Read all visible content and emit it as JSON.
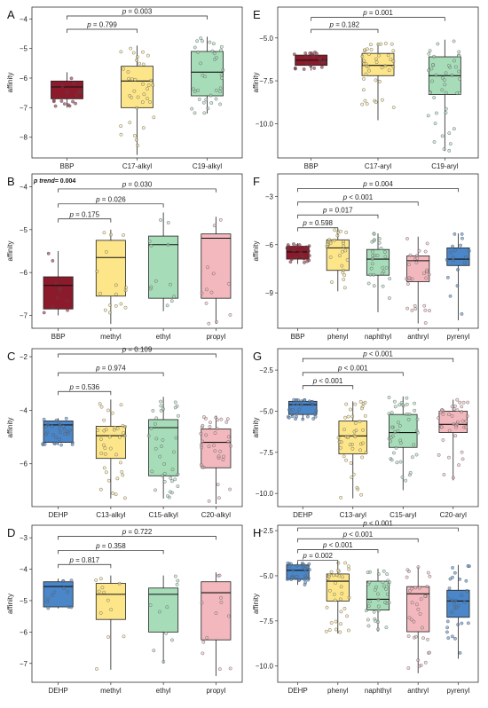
{
  "colors": {
    "red": "#8b1a2b",
    "yellow": "#fde68a",
    "green": "#a7dcb9",
    "pink": "#f2b8bd",
    "blue": "#4a86c8"
  },
  "chart_data": [
    {
      "type": "boxplot",
      "panel": "A",
      "ylabel": "affinity",
      "ylim": [
        -8.7,
        -3.6
      ],
      "yticks": [
        -8,
        -7,
        -6,
        -5,
        -4
      ],
      "categories": [
        "BBP",
        "C17-alkyl",
        "C19-alkyl"
      ],
      "boxes": [
        {
          "min": -7.0,
          "q1": -6.7,
          "median": -6.3,
          "q3": -6.1,
          "max": -5.8,
          "color": "red"
        },
        {
          "min": -8.6,
          "q1": -7.0,
          "median": -6.1,
          "q3": -5.6,
          "max": -4.9,
          "color": "yellow"
        },
        {
          "min": -7.2,
          "q1": -6.6,
          "median": -5.8,
          "q3": -5.1,
          "max": -4.6,
          "color": "green"
        }
      ],
      "npoints": [
        16,
        36,
        36
      ],
      "comparisons": [
        {
          "from": 0,
          "to": 1,
          "label": "p = 0.799",
          "y": -4.35
        },
        {
          "from": 0,
          "to": 2,
          "label": "p = 0.003",
          "y": -3.9
        }
      ]
    },
    {
      "type": "boxplot",
      "panel": "B",
      "ylabel": "affinity",
      "note": "p trend= 0.004",
      "ylim": [
        -7.3,
        -3.7
      ],
      "yticks": [
        -7,
        -6,
        -5,
        -4
      ],
      "categories": [
        "BBP",
        "methyl",
        "ethyl",
        "propyl"
      ],
      "boxes": [
        {
          "min": -7.0,
          "q1": -6.85,
          "median": -6.3,
          "q3": -6.1,
          "max": -5.5,
          "color": "red"
        },
        {
          "min": -7.2,
          "q1": -6.55,
          "median": -5.65,
          "q3": -5.25,
          "max": -5.0,
          "color": "yellow"
        },
        {
          "min": -6.9,
          "q1": -6.6,
          "median": -5.35,
          "q3": -5.15,
          "max": -4.6,
          "color": "green"
        },
        {
          "min": -7.2,
          "q1": -6.6,
          "median": -5.2,
          "q3": -5.1,
          "max": -4.7,
          "color": "pink"
        }
      ],
      "npoints": [
        10,
        16,
        12,
        12
      ],
      "comparisons": [
        {
          "from": 0,
          "to": 1,
          "label": "p = 0.175",
          "y": -4.75
        },
        {
          "from": 0,
          "to": 2,
          "label": "p = 0.026",
          "y": -4.4
        },
        {
          "from": 0,
          "to": 3,
          "label": "p = 0.030",
          "y": -4.05
        }
      ]
    },
    {
      "type": "boxplot",
      "panel": "C",
      "ylabel": "affinity",
      "ylim": [
        -7.6,
        -1.7
      ],
      "yticks": [
        -6,
        -4,
        -2
      ],
      "categories": [
        "DEHP",
        "C13-alkyl",
        "C15-alkyl",
        "C20-alkyl"
      ],
      "boxes": [
        {
          "min": -5.3,
          "q1": -5.2,
          "median": -4.55,
          "q3": -4.4,
          "max": -4.3,
          "color": "blue"
        },
        {
          "min": -7.3,
          "q1": -5.8,
          "median": -4.95,
          "q3": -4.6,
          "max": -3.6,
          "color": "yellow"
        },
        {
          "min": -7.3,
          "q1": -6.45,
          "median": -4.65,
          "q3": -4.35,
          "max": -3.5,
          "color": "green"
        },
        {
          "min": -7.5,
          "q1": -6.15,
          "median": -5.2,
          "q3": -4.7,
          "max": -4.2,
          "color": "pink"
        }
      ],
      "npoints": [
        30,
        36,
        36,
        36
      ],
      "comparisons": [
        {
          "from": 0,
          "to": 1,
          "label": "p = 0.536",
          "y": -3.3
        },
        {
          "from": 0,
          "to": 2,
          "label": "p = 0.974",
          "y": -2.6
        },
        {
          "from": 0,
          "to": 3,
          "label": "p = 0.109",
          "y": -1.9
        }
      ]
    },
    {
      "type": "boxplot",
      "panel": "D",
      "ylabel": "affinity",
      "ylim": [
        -7.6,
        -2.6
      ],
      "yticks": [
        -7,
        -6,
        -5,
        -4,
        -3
      ],
      "categories": [
        "DEHP",
        "methyl",
        "ethyl",
        "propyl"
      ],
      "boxes": [
        {
          "min": -5.25,
          "q1": -5.2,
          "median": -4.55,
          "q3": -4.4,
          "max": -4.3,
          "color": "blue"
        },
        {
          "min": -7.2,
          "q1": -5.6,
          "median": -4.8,
          "q3": -4.45,
          "max": -4.2,
          "color": "yellow"
        },
        {
          "min": -7.0,
          "q1": -6.0,
          "median": -4.8,
          "q3": -4.6,
          "max": -4.2,
          "color": "green"
        },
        {
          "min": -7.4,
          "q1": -6.25,
          "median": -4.75,
          "q3": -4.4,
          "max": -4.1,
          "color": "pink"
        }
      ],
      "npoints": [
        12,
        12,
        10,
        12
      ],
      "comparisons": [
        {
          "from": 0,
          "to": 1,
          "label": "p = 0.817",
          "y": -3.85
        },
        {
          "from": 0,
          "to": 2,
          "label": "p = 0.358",
          "y": -3.4
        },
        {
          "from": 0,
          "to": 3,
          "label": "p = 0.722",
          "y": -2.95
        }
      ]
    },
    {
      "type": "boxplot",
      "panel": "E",
      "ylabel": "affinity",
      "ylim": [
        -12.0,
        -3.2
      ],
      "yticks": [
        -10.0,
        -7.5,
        -5.0
      ],
      "categories": [
        "BBP",
        "C17-aryl",
        "C19-aryl"
      ],
      "boxes": [
        {
          "min": -6.9,
          "q1": -6.6,
          "median": -6.3,
          "q3": -6.0,
          "max": -5.8,
          "color": "red"
        },
        {
          "min": -9.8,
          "q1": -7.2,
          "median": -6.6,
          "q3": -5.9,
          "max": -5.3,
          "color": "yellow"
        },
        {
          "min": -11.6,
          "q1": -8.3,
          "median": -7.2,
          "q3": -6.1,
          "max": -5.1,
          "color": "green"
        }
      ],
      "npoints": [
        20,
        40,
        44
      ],
      "comparisons": [
        {
          "from": 0,
          "to": 1,
          "label": "p = 0.182",
          "y": -4.5
        },
        {
          "from": 0,
          "to": 2,
          "label": "p = 0.001",
          "y": -3.8
        }
      ]
    },
    {
      "type": "boxplot",
      "panel": "F",
      "ylabel": "affinity",
      "ylim": [
        -11.2,
        -1.6
      ],
      "yticks": [
        -9,
        -6,
        -3
      ],
      "categories": [
        "BBP",
        "phenyl",
        "naphthyl",
        "anthryl",
        "pyrenyl"
      ],
      "boxes": [
        {
          "min": -7.2,
          "q1": -6.9,
          "median": -6.45,
          "q3": -6.1,
          "max": -5.9,
          "color": "red"
        },
        {
          "min": -8.9,
          "q1": -7.6,
          "median": -6.2,
          "q3": -5.7,
          "max": -5.0,
          "color": "yellow"
        },
        {
          "min": -10.2,
          "q1": -7.9,
          "median": -6.9,
          "q3": -6.3,
          "max": -5.3,
          "color": "green"
        },
        {
          "min": -10.9,
          "q1": -8.3,
          "median": -7.0,
          "q3": -6.7,
          "max": -5.5,
          "color": "pink"
        },
        {
          "min": -10.7,
          "q1": -7.3,
          "median": -6.9,
          "q3": -6.2,
          "max": -5.3,
          "color": "blue"
        }
      ],
      "npoints": [
        20,
        28,
        28,
        28,
        18
      ],
      "comparisons": [
        {
          "from": 0,
          "to": 1,
          "label": "p = 0.598",
          "y": -4.95
        },
        {
          "from": 0,
          "to": 2,
          "label": "p = 0.017",
          "y": -4.15
        },
        {
          "from": 0,
          "to": 3,
          "label": "p < 0.001",
          "y": -3.35
        },
        {
          "from": 0,
          "to": 4,
          "label": "p = 0.004",
          "y": -2.5
        }
      ]
    },
    {
      "type": "boxplot",
      "panel": "G",
      "ylabel": "affinity",
      "ylim": [
        -10.8,
        -1.2
      ],
      "yticks": [
        -10.0,
        -7.5,
        -5.0,
        -2.5
      ],
      "categories": [
        "DEHP",
        "C13-aryl",
        "C15-aryl",
        "C20-aryl"
      ],
      "boxes": [
        {
          "min": -5.5,
          "q1": -5.2,
          "median": -4.6,
          "q3": -4.4,
          "max": -4.3,
          "color": "blue"
        },
        {
          "min": -10.3,
          "q1": -7.6,
          "median": -6.5,
          "q3": -5.6,
          "max": -4.4,
          "color": "yellow"
        },
        {
          "min": -9.8,
          "q1": -7.2,
          "median": -6.3,
          "q3": -5.2,
          "max": -4.1,
          "color": "green"
        },
        {
          "min": -9.2,
          "q1": -6.3,
          "median": -5.8,
          "q3": -5.0,
          "max": -4.3,
          "color": "pink"
        }
      ],
      "npoints": [
        30,
        44,
        44,
        40
      ],
      "comparisons": [
        {
          "from": 0,
          "to": 1,
          "label": "p < 0.001",
          "y": -3.45
        },
        {
          "from": 0,
          "to": 2,
          "label": "p < 0.001",
          "y": -2.65
        },
        {
          "from": 0,
          "to": 3,
          "label": "p < 0.001",
          "y": -1.8
        }
      ]
    },
    {
      "type": "boxplot",
      "panel": "H",
      "ylabel": "affinity",
      "ylim": [
        -10.9,
        -2.2
      ],
      "yticks": [
        -10.0,
        -7.5,
        -5.0,
        -2.5
      ],
      "categories": [
        "DEHP",
        "phenyl",
        "naphthyl",
        "anthryl",
        "pyrenyl"
      ],
      "boxes": [
        {
          "min": -5.5,
          "q1": -5.2,
          "median": -4.7,
          "q3": -4.4,
          "max": -4.3,
          "color": "blue"
        },
        {
          "min": -8.2,
          "q1": -6.4,
          "median": -5.3,
          "q3": -4.9,
          "max": -4.2,
          "color": "yellow"
        },
        {
          "min": -8.1,
          "q1": -6.9,
          "median": -6.3,
          "q3": -5.3,
          "max": -4.6,
          "color": "green"
        },
        {
          "min": -10.4,
          "q1": -8.1,
          "median": -6.0,
          "q3": -5.6,
          "max": -4.5,
          "color": "pink"
        },
        {
          "min": -9.6,
          "q1": -7.3,
          "median": -6.4,
          "q3": -5.8,
          "max": -4.4,
          "color": "blue"
        }
      ],
      "npoints": [
        30,
        34,
        34,
        34,
        30
      ],
      "comparisons": [
        {
          "from": 0,
          "to": 1,
          "label": "p = 0.002",
          "y": -4.15
        },
        {
          "from": 0,
          "to": 2,
          "label": "p < 0.001",
          "y": -3.55
        },
        {
          "from": 0,
          "to": 3,
          "label": "p < 0.001",
          "y": -2.95
        },
        {
          "from": 0,
          "to": 4,
          "label": "p < 0.001",
          "y": -2.35
        }
      ]
    }
  ]
}
